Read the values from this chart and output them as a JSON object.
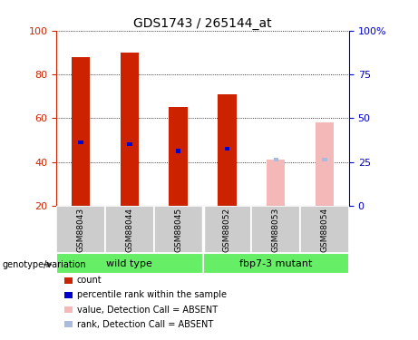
{
  "title": "GDS1743 / 265144_at",
  "samples": [
    "GSM88043",
    "GSM88044",
    "GSM88045",
    "GSM88052",
    "GSM88053",
    "GSM88054"
  ],
  "bar_values": [
    88,
    90,
    65,
    71,
    41,
    58
  ],
  "bar_colors": [
    "#cc2200",
    "#cc2200",
    "#cc2200",
    "#cc2200",
    "#f4b8b8",
    "#f4b8b8"
  ],
  "rank_values": [
    49,
    48,
    45,
    46,
    41,
    41
  ],
  "rank_colors": [
    "#0000cc",
    "#0000cc",
    "#0000cc",
    "#0000cc",
    "#aabbdd",
    "#aabbdd"
  ],
  "absent_flags": [
    false,
    false,
    false,
    false,
    true,
    true
  ],
  "ylim_left": [
    20,
    100
  ],
  "ylim_right": [
    0,
    100
  ],
  "yticks_left": [
    20,
    40,
    60,
    80,
    100
  ],
  "ytick_labels_right": [
    "0",
    "25",
    "50",
    "75",
    "100%"
  ],
  "background_color": "#ffffff",
  "left_tick_color": "#cc2200",
  "right_tick_color": "#0000cc",
  "sample_bg_color": "#cccccc",
  "group_bg_color": "#66ee66",
  "legend_items": [
    {
      "label": "count",
      "color": "#cc2200"
    },
    {
      "label": "percentile rank within the sample",
      "color": "#0000cc"
    },
    {
      "label": "value, Detection Call = ABSENT",
      "color": "#f4b8b8"
    },
    {
      "label": "rank, Detection Call = ABSENT",
      "color": "#aabbdd"
    }
  ]
}
